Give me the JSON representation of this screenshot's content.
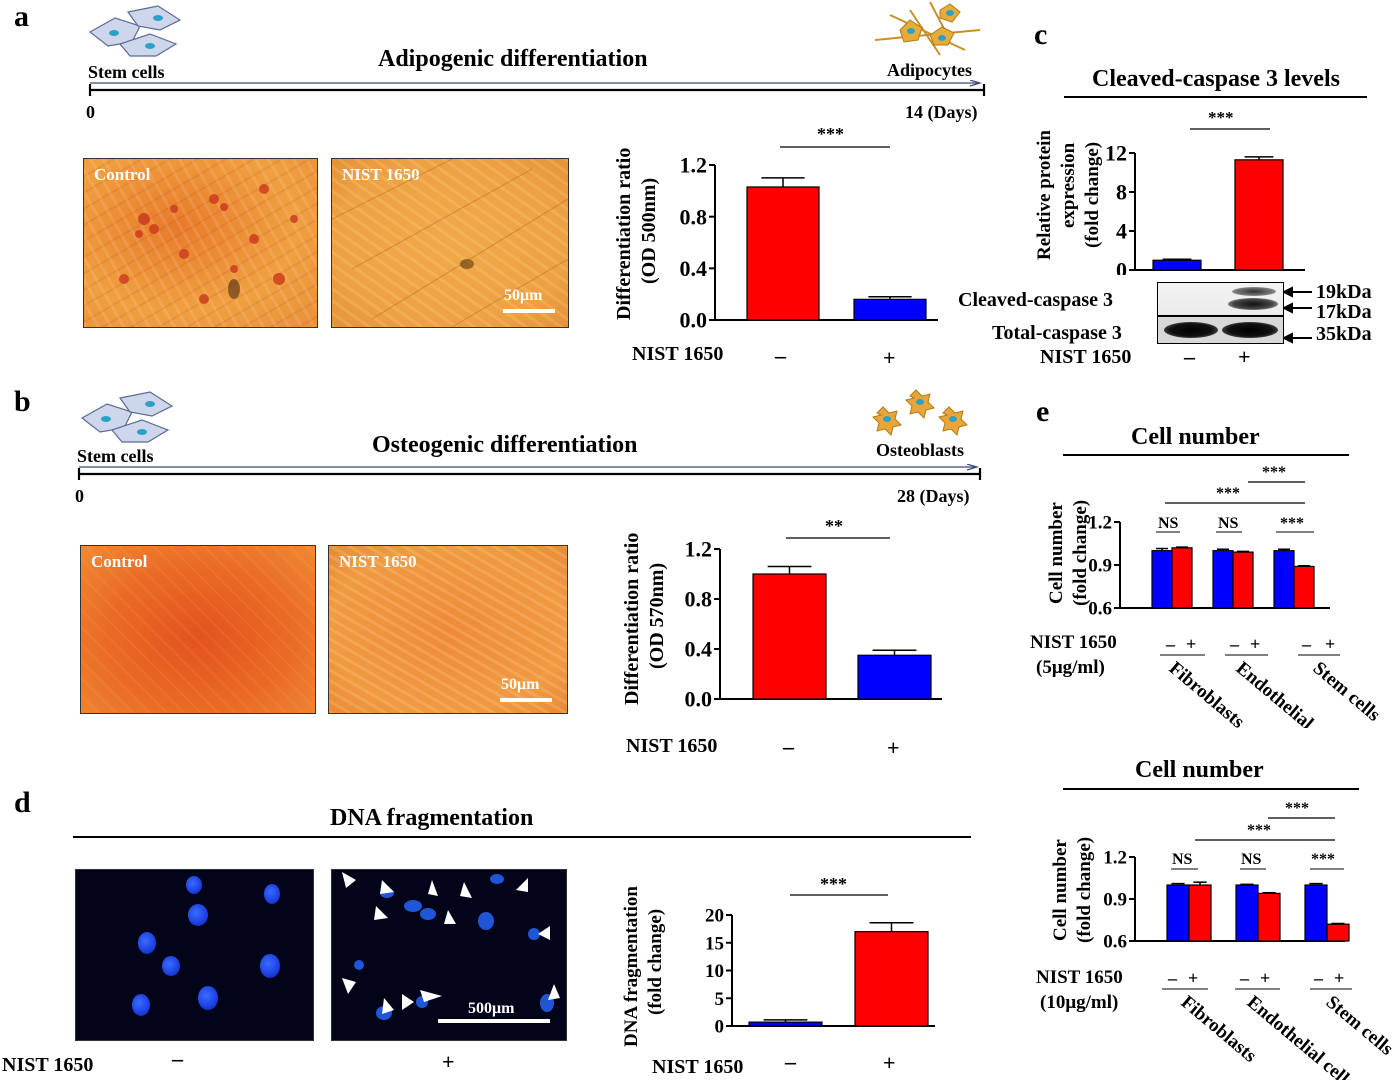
{
  "panels": {
    "a": {
      "label": "a",
      "title": "Adipogenic differentiation",
      "start_cell": "Stem cells",
      "end_cell": "Adipocytes",
      "t0": "0",
      "t_end": "14 (Days)",
      "photo_left_label": "Control",
      "photo_right_label": "NIST 1650",
      "scale_bar": "50μm",
      "treatment_label": "NIST 1650",
      "treatment_minus": "–",
      "treatment_plus": "+",
      "significance": "***"
    },
    "b": {
      "label": "b",
      "title": "Osteogenic differentiation",
      "start_cell": "Stem cells",
      "end_cell": "Osteoblasts",
      "t0": "0",
      "t_end": "28 (Days)",
      "photo_left_label": "Control",
      "photo_right_label": "NIST 1650",
      "scale_bar": "50μm",
      "treatment_label": "NIST 1650",
      "treatment_minus": "–",
      "treatment_plus": "+",
      "significance": "**"
    },
    "c": {
      "label": "c",
      "title": "Cleaved-caspase 3 levels",
      "significance": "***",
      "blot_row1": "Cleaved-caspase 3",
      "blot_row2": "Total-caspase 3",
      "kda1": "19kDa",
      "kda2": "17kDa",
      "kda3": "35kDa",
      "treatment_label": "NIST 1650",
      "treatment_minus": "–",
      "treatment_plus": "+"
    },
    "d": {
      "label": "d",
      "title": "DNA fragmentation",
      "scale_bar": "500μm",
      "treatment_label": "NIST 1650",
      "treatment_minus": "–",
      "treatment_plus": "+",
      "significance": "***"
    },
    "e": {
      "label": "e",
      "top": {
        "title": "Cell number",
        "treatment_label": "NIST 1650",
        "dose": "(5μg/ml)",
        "sig_ns1": "NS",
        "sig_ns2": "NS",
        "sig_stem": "***",
        "sig_top1": "***",
        "sig_top2": "***"
      },
      "bottom": {
        "title": "Cell number",
        "treatment_label": "NIST 1650",
        "dose": "(10μg/ml)",
        "sig_ns1": "NS",
        "sig_ns2": "NS",
        "sig_stem": "***",
        "sig_top1": "***",
        "sig_top2": "***"
      },
      "minus": "–",
      "plus": "+"
    }
  },
  "colors": {
    "control": "#0000ff",
    "treated": "#ff0000"
  },
  "chart_data": [
    {
      "id": "a",
      "type": "bar",
      "categories": [
        "–",
        "+"
      ],
      "values": [
        1.03,
        0.16
      ],
      "errors": [
        0.07,
        0.02
      ],
      "colors": [
        "#ff0000",
        "#0000ff"
      ],
      "ylabel": "Differentiation ratio (OD 500nm)",
      "ylim": [
        0,
        1.2
      ],
      "yticks": [
        "0.0",
        "0.4",
        "0.8",
        "1.2"
      ]
    },
    {
      "id": "b",
      "type": "bar",
      "categories": [
        "–",
        "+"
      ],
      "values": [
        1.0,
        0.35
      ],
      "errors": [
        0.06,
        0.04
      ],
      "colors": [
        "#ff0000",
        "#0000ff"
      ],
      "ylabel": "Differentiation ratio (OD 570nm)",
      "ylim": [
        0,
        1.2
      ],
      "yticks": [
        "0.0",
        "0.4",
        "0.8",
        "1.2"
      ]
    },
    {
      "id": "c",
      "type": "bar",
      "categories": [
        "–",
        "+"
      ],
      "values": [
        1.0,
        11.3
      ],
      "errors": [
        0.1,
        0.3
      ],
      "colors": [
        "#0000ff",
        "#ff0000"
      ],
      "ylabel": "Relative protein expression (fold change)",
      "ylim": [
        0,
        12
      ],
      "yticks": [
        "0",
        "4",
        "8",
        "12"
      ]
    },
    {
      "id": "d",
      "type": "bar",
      "categories": [
        "–",
        "+"
      ],
      "values": [
        0.7,
        17.0
      ],
      "errors": [
        0.4,
        1.6
      ],
      "colors": [
        "#0000ff",
        "#ff0000"
      ],
      "ylabel": "DNA fragmentation (fold change)",
      "ylim": [
        0,
        20
      ],
      "yticks": [
        "0",
        "5",
        "10",
        "15",
        "20"
      ]
    },
    {
      "id": "e1",
      "type": "bar",
      "categories": [
        "Fibroblasts",
        "Endothelial cells",
        "Stem cells"
      ],
      "series": [
        {
          "values": [
            1.0,
            1.0,
            1.0
          ],
          "errors": [
            0.015,
            0.01,
            0.01
          ]
        },
        {
          "values": [
            1.02,
            0.99,
            0.89
          ],
          "errors": [
            0.005,
            0.005,
            0.005
          ]
        }
      ],
      "ylabel": "Cell number (fold change)",
      "ylim": [
        0.6,
        1.2
      ],
      "yticks": [
        "0.6",
        "0.9",
        "1.2"
      ]
    },
    {
      "id": "e2",
      "type": "bar",
      "categories": [
        "Fibroblasts",
        "Endothelial cells",
        "Stem cells"
      ],
      "series": [
        {
          "values": [
            1.0,
            1.0,
            1.0
          ],
          "errors": [
            0.01,
            0.005,
            0.01
          ]
        },
        {
          "values": [
            1.0,
            0.94,
            0.72
          ],
          "errors": [
            0.02,
            0.005,
            0.005
          ]
        }
      ],
      "ylabel": "Cell number (fold change)",
      "ylim": [
        0.6,
        1.2
      ],
      "yticks": [
        "0.6",
        "0.9",
        "1.2"
      ]
    }
  ]
}
